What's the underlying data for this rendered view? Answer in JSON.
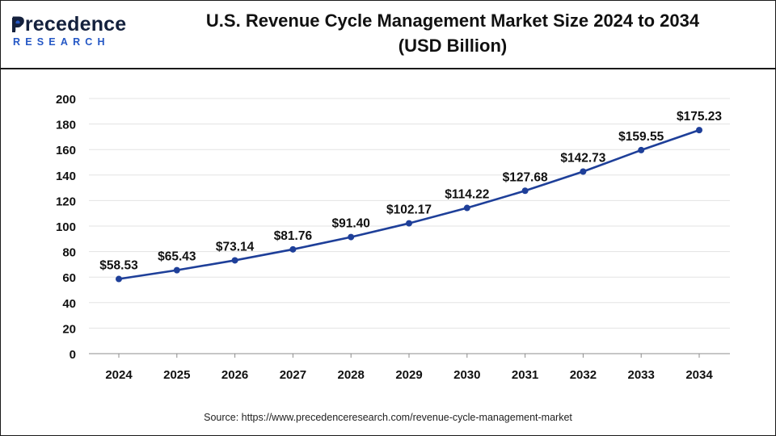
{
  "header": {
    "logo_word": "Precedence",
    "logo_sub": "RESEARCH",
    "title_line1": "U.S. Revenue Cycle Management Market Size 2024 to 2034",
    "title_line2": "(USD Billion)"
  },
  "source": "Source: https://www.precedenceresearch.com/revenue-cycle-management-market",
  "colors": {
    "line": "#1e3f99",
    "marker": "#1e3f99",
    "logo_dark": "#14213d",
    "logo_blue": "#2457c5"
  },
  "chart_data": {
    "type": "line",
    "title": "U.S. Revenue Cycle Management Market Size 2024 to 2034 (USD Billion)",
    "xlabel": "",
    "ylabel": "",
    "ylim": [
      0,
      200
    ],
    "yticks": [
      0,
      20,
      40,
      60,
      80,
      100,
      120,
      140,
      160,
      180,
      200
    ],
    "grid": true,
    "categories": [
      "2024",
      "2025",
      "2026",
      "2027",
      "2028",
      "2029",
      "2030",
      "2031",
      "2032",
      "2033",
      "2034"
    ],
    "series": [
      {
        "name": "U.S. Revenue Cycle Management Market Size",
        "values": [
          58.53,
          65.43,
          73.14,
          81.76,
          91.4,
          102.17,
          114.22,
          127.68,
          142.73,
          159.55,
          175.23
        ],
        "labels": [
          "$58.53",
          "$65.43",
          "$73.14",
          "$81.76",
          "$91.40",
          "$102.17",
          "$114.22",
          "$127.68",
          "$142.73",
          "$159.55",
          "$175.23"
        ]
      }
    ]
  }
}
